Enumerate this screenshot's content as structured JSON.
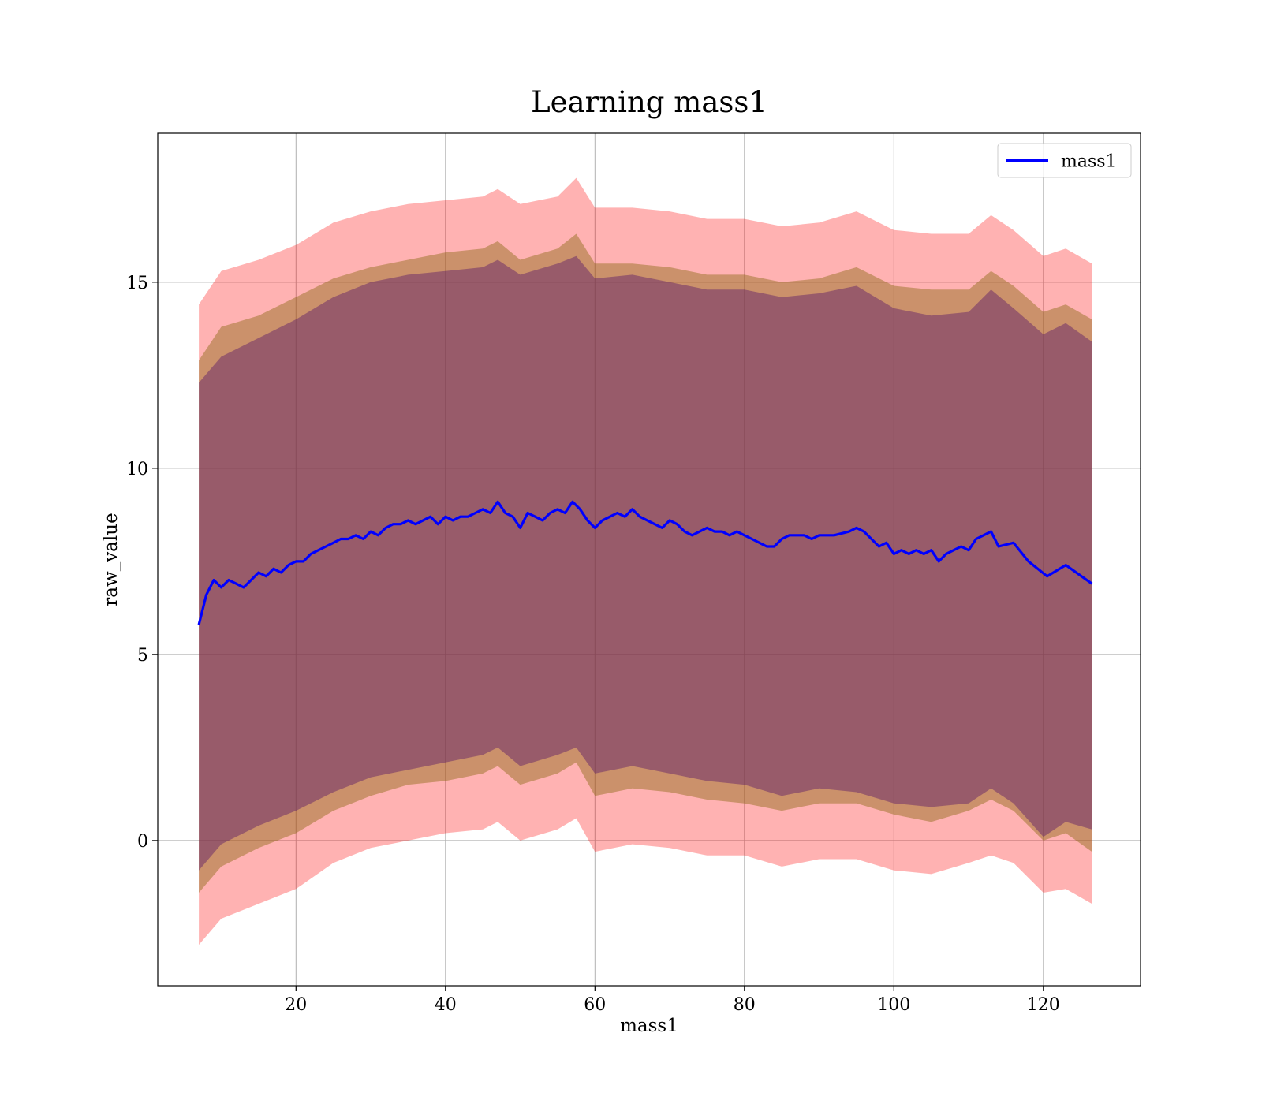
{
  "chart_data": {
    "type": "line",
    "title": "Learning mass1",
    "xlabel": "mass1",
    "ylabel": "raw_value",
    "xlim": [
      1.5,
      133
    ],
    "ylim": [
      -3.9,
      19
    ],
    "xticks": [
      20,
      40,
      60,
      80,
      100,
      120
    ],
    "yticks": [
      0,
      5,
      10,
      15
    ],
    "grid": true,
    "legend_position": "top-right",
    "colors": {
      "line": "#0000ff",
      "outer_band": "#ff0000",
      "middle_band": "#8b6914",
      "inner_band": "#5a1a6a",
      "grid": "#b0b0b0"
    },
    "series": [
      {
        "name": "mass1",
        "x": [
          7,
          8,
          9,
          10,
          11,
          12,
          13,
          14,
          15,
          16,
          17,
          18,
          19,
          20,
          21,
          22,
          23,
          24,
          25,
          26,
          27,
          28,
          29,
          30,
          31,
          32,
          33,
          34,
          35,
          36,
          37,
          38,
          39,
          40,
          41,
          42,
          43,
          44,
          45,
          46,
          47,
          48,
          49,
          50,
          51,
          52,
          53,
          54,
          55,
          56,
          57,
          58,
          59,
          60,
          61,
          62,
          63,
          64,
          65,
          66,
          67,
          68,
          69,
          70,
          71,
          72,
          73,
          74,
          75,
          76,
          77,
          78,
          79,
          80,
          81,
          82,
          83,
          84,
          85,
          86,
          87,
          88,
          89,
          90,
          92,
          94,
          95,
          96,
          98,
          99,
          100,
          101,
          102,
          103,
          104,
          105,
          106,
          107,
          108,
          109,
          110,
          111,
          112,
          113,
          114,
          116,
          118,
          120.5,
          123,
          126.5
        ],
        "y": [
          5.8,
          6.6,
          7.0,
          6.8,
          7.0,
          6.9,
          6.8,
          7.0,
          7.2,
          7.1,
          7.3,
          7.2,
          7.4,
          7.5,
          7.5,
          7.7,
          7.8,
          7.9,
          8.0,
          8.1,
          8.1,
          8.2,
          8.1,
          8.3,
          8.2,
          8.4,
          8.5,
          8.5,
          8.6,
          8.5,
          8.6,
          8.7,
          8.5,
          8.7,
          8.6,
          8.7,
          8.7,
          8.8,
          8.9,
          8.8,
          9.1,
          8.8,
          8.7,
          8.4,
          8.8,
          8.7,
          8.6,
          8.8,
          8.9,
          8.8,
          9.1,
          8.9,
          8.6,
          8.4,
          8.6,
          8.7,
          8.8,
          8.7,
          8.9,
          8.7,
          8.6,
          8.5,
          8.4,
          8.6,
          8.5,
          8.3,
          8.2,
          8.3,
          8.4,
          8.3,
          8.3,
          8.2,
          8.3,
          8.2,
          8.1,
          8.0,
          7.9,
          7.9,
          8.1,
          8.2,
          8.2,
          8.2,
          8.1,
          8.2,
          8.2,
          8.3,
          8.4,
          8.3,
          7.9,
          8.0,
          7.7,
          7.8,
          7.7,
          7.8,
          7.7,
          7.8,
          7.5,
          7.7,
          7.8,
          7.9,
          7.8,
          8.1,
          8.2,
          8.3,
          7.9,
          8.0,
          7.5,
          7.1,
          7.4,
          6.9
        ]
      }
    ],
    "bands": [
      {
        "x": [
          7,
          10,
          15,
          20,
          25,
          30,
          35,
          40,
          45,
          47,
          50,
          55,
          57.5,
          60,
          65,
          70,
          75,
          80,
          85,
          90,
          95,
          100,
          105,
          110,
          113,
          116,
          120,
          123,
          126.5
        ],
        "lower": [
          -2.8,
          -2.1,
          -1.7,
          -1.3,
          -0.6,
          -0.2,
          0.0,
          0.2,
          0.3,
          0.5,
          0.0,
          0.3,
          0.6,
          -0.3,
          -0.1,
          -0.2,
          -0.4,
          -0.4,
          -0.7,
          -0.5,
          -0.5,
          -0.8,
          -0.9,
          -0.6,
          -0.4,
          -0.6,
          -1.4,
          -1.3,
          -1.7
        ],
        "upper": [
          14.4,
          15.3,
          15.6,
          16.0,
          16.6,
          16.9,
          17.1,
          17.2,
          17.3,
          17.5,
          17.1,
          17.3,
          17.8,
          17.0,
          17.0,
          16.9,
          16.7,
          16.7,
          16.5,
          16.6,
          16.9,
          16.4,
          16.3,
          16.3,
          16.8,
          16.4,
          15.7,
          15.9,
          15.5
        ]
      },
      {
        "x": [
          7,
          10,
          15,
          20,
          25,
          30,
          35,
          40,
          45,
          47,
          50,
          55,
          57.5,
          60,
          65,
          70,
          75,
          80,
          85,
          90,
          95,
          100,
          105,
          110,
          113,
          116,
          120,
          123,
          126.5
        ],
        "lower": [
          -1.4,
          -0.7,
          -0.2,
          0.2,
          0.8,
          1.2,
          1.5,
          1.6,
          1.8,
          2.0,
          1.5,
          1.8,
          2.1,
          1.2,
          1.4,
          1.3,
          1.1,
          1.0,
          0.8,
          1.0,
          1.0,
          0.7,
          0.5,
          0.8,
          1.1,
          0.8,
          0.0,
          0.2,
          -0.3
        ],
        "upper": [
          12.9,
          13.8,
          14.1,
          14.6,
          15.1,
          15.4,
          15.6,
          15.8,
          15.9,
          16.1,
          15.6,
          15.9,
          16.3,
          15.5,
          15.5,
          15.4,
          15.2,
          15.2,
          15.0,
          15.1,
          15.4,
          14.9,
          14.8,
          14.8,
          15.3,
          14.9,
          14.2,
          14.4,
          14.0
        ]
      },
      {
        "x": [
          7,
          10,
          15,
          20,
          25,
          30,
          35,
          40,
          45,
          47,
          50,
          55,
          57.5,
          60,
          65,
          70,
          75,
          80,
          85,
          90,
          95,
          100,
          105,
          110,
          113,
          116,
          120,
          123,
          126.5
        ],
        "lower": [
          -0.8,
          -0.1,
          0.4,
          0.8,
          1.3,
          1.7,
          1.9,
          2.1,
          2.3,
          2.5,
          2.0,
          2.3,
          2.5,
          1.8,
          2.0,
          1.8,
          1.6,
          1.5,
          1.2,
          1.4,
          1.3,
          1.0,
          0.9,
          1.0,
          1.4,
          1.0,
          0.1,
          0.5,
          0.3
        ],
        "upper": [
          12.3,
          13.0,
          13.5,
          14.0,
          14.6,
          15.0,
          15.2,
          15.3,
          15.4,
          15.6,
          15.2,
          15.5,
          15.7,
          15.1,
          15.2,
          15.0,
          14.8,
          14.8,
          14.6,
          14.7,
          14.9,
          14.3,
          14.1,
          14.2,
          14.8,
          14.3,
          13.6,
          13.9,
          13.4
        ]
      }
    ]
  }
}
